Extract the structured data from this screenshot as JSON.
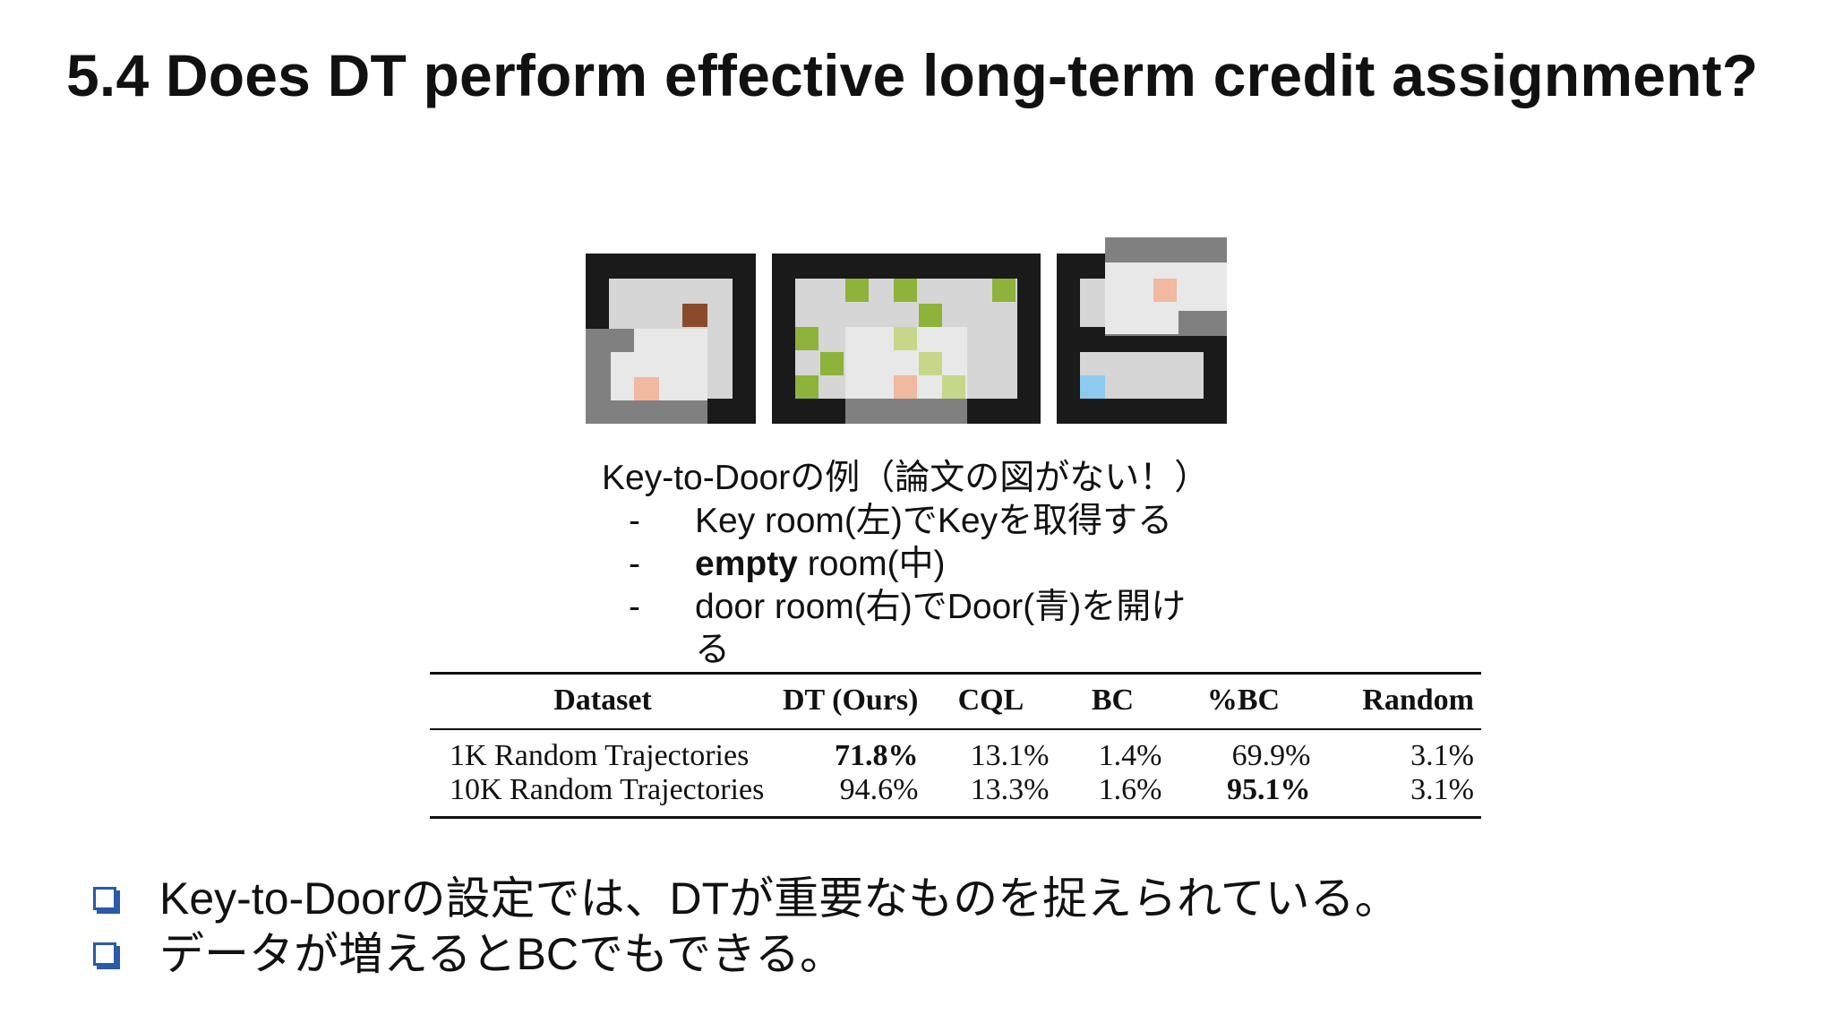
{
  "slide": {
    "title": "5.4 Does DT perform effective long-term credit assignment?"
  },
  "figure": {
    "description_icons": [
      "key-room",
      "empty-room",
      "door-room"
    ]
  },
  "caption": {
    "title": "Key-to-Doorの例（論文の図がない！）",
    "items": [
      {
        "dash": "-",
        "text": "Key room(左)でKeyを取得する"
      },
      {
        "dash": "-",
        "bold": "empty",
        "text": " room(中)"
      },
      {
        "dash": "-",
        "text": "door room(右)でDoor(青)を開ける"
      }
    ]
  },
  "table": {
    "headers": [
      "Dataset",
      "DT (Ours)",
      "CQL",
      "BC",
      "%BC",
      "Random"
    ],
    "rows": [
      [
        "1K Random Trajectories",
        "71.8%",
        "13.1%",
        "1.4%",
        "69.9%",
        "3.1%"
      ],
      [
        "10K Random Trajectories",
        "94.6%",
        "13.3%",
        "1.6%",
        "95.1%",
        "3.1%"
      ]
    ]
  },
  "bullets": [
    "Key-to-Doorの設定では、DTが重要なものを捉えられている。",
    "データが増えるとBCでもできる。"
  ],
  "colors": {
    "wall": "#1a1a1a",
    "floor": "#d6d6d6",
    "view": "#e8e8e8",
    "key": "#8b4a2b",
    "agent": "#f0b9a0",
    "apple": "#8db33a",
    "door": "#8ccbee",
    "checkbox": "#2a5aa8"
  }
}
